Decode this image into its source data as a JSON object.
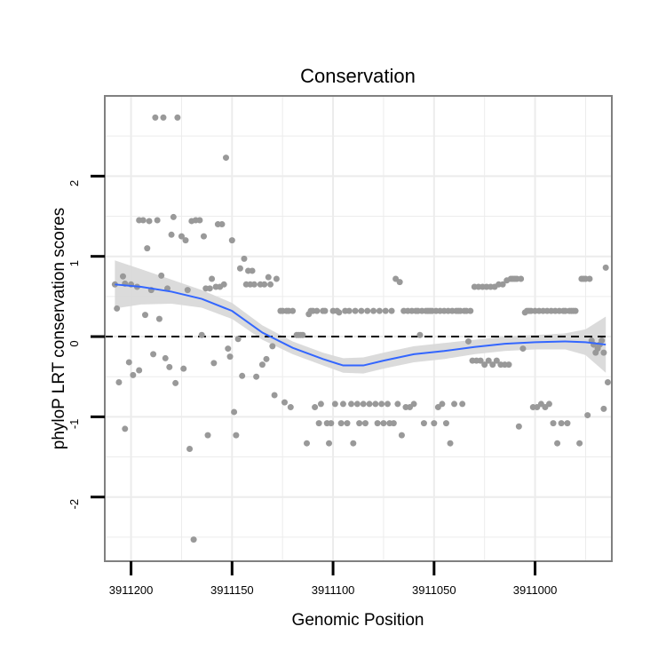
{
  "chart_data": {
    "type": "scatter",
    "title": "Conservation",
    "xlabel": "Genomic Position",
    "ylabel": "phyloP LRT conservation scores",
    "x_reversed": true,
    "xlim": [
      3910962,
      3911213
    ],
    "ylim": [
      -2.8,
      3.0
    ],
    "x_ticks": [
      3911200,
      3911150,
      3911100,
      3911050,
      3911000
    ],
    "x_tick_labels": [
      "3911200",
      "3911150",
      "3911100",
      "3911050",
      "3911000"
    ],
    "y_ticks": [
      2,
      1,
      0,
      -1,
      -2
    ],
    "y_tick_labels": [
      "2",
      "1",
      "0",
      "-1",
      "-2"
    ],
    "reference_line": {
      "y": 0,
      "style": "dashed",
      "color": "#000000"
    },
    "grid": true,
    "colors": {
      "points": "#999999",
      "smooth": "#3366ff",
      "band": "#d9d9d9",
      "panel_border": "#808080",
      "grid": "#ececec"
    },
    "smooth": {
      "x": [
        3911208,
        3911195,
        3911180,
        3911165,
        3911150,
        3911135,
        3911120,
        3911105,
        3911095,
        3911085,
        3911075,
        3911060,
        3911045,
        3911030,
        3911015,
        3911000,
        3910985,
        3910975,
        3910965
      ],
      "y": [
        0.65,
        0.62,
        0.56,
        0.47,
        0.32,
        0.05,
        -0.14,
        -0.28,
        -0.36,
        -0.36,
        -0.3,
        -0.22,
        -0.18,
        -0.13,
        -0.09,
        -0.07,
        -0.06,
        -0.07,
        -0.1
      ],
      "ci_halfwidth": [
        0.3,
        0.22,
        0.15,
        0.11,
        0.1,
        0.09,
        0.08,
        0.08,
        0.09,
        0.1,
        0.1,
        0.1,
        0.1,
        0.09,
        0.09,
        0.09,
        0.1,
        0.16,
        0.35
      ]
    },
    "points": [
      [
        3911208,
        0.65
      ],
      [
        3911207,
        0.35
      ],
      [
        3911206,
        -0.57
      ],
      [
        3911204,
        0.75
      ],
      [
        3911203,
        -1.15
      ],
      [
        3911203,
        0.66
      ],
      [
        3911201,
        -0.32
      ],
      [
        3911200,
        0.65
      ],
      [
        3911199,
        -0.48
      ],
      [
        3911197,
        0.62
      ],
      [
        3911196,
        1.45
      ],
      [
        3911196,
        -0.42
      ],
      [
        3911194,
        1.45
      ],
      [
        3911193,
        0.27
      ],
      [
        3911192,
        1.1
      ],
      [
        3911191,
        1.44
      ],
      [
        3911190,
        0.58
      ],
      [
        3911189,
        -0.22
      ],
      [
        3911188,
        2.73
      ],
      [
        3911187,
        1.45
      ],
      [
        3911186,
        0.22
      ],
      [
        3911185,
        0.76
      ],
      [
        3911184,
        2.73
      ],
      [
        3911183,
        -0.27
      ],
      [
        3911182,
        0.6
      ],
      [
        3911181,
        -0.38
      ],
      [
        3911180,
        1.27
      ],
      [
        3911179,
        1.49
      ],
      [
        3911178,
        -0.58
      ],
      [
        3911177,
        2.73
      ],
      [
        3911175,
        1.25
      ],
      [
        3911174,
        -0.4
      ],
      [
        3911173,
        1.2
      ],
      [
        3911172,
        0.58
      ],
      [
        3911171,
        -1.4
      ],
      [
        3911170,
        1.44
      ],
      [
        3911169,
        -2.53
      ],
      [
        3911168,
        1.45
      ],
      [
        3911166,
        1.45
      ],
      [
        3911165,
        0.02
      ],
      [
        3911164,
        1.25
      ],
      [
        3911163,
        0.6
      ],
      [
        3911162,
        -1.23
      ],
      [
        3911161,
        0.6
      ],
      [
        3911160,
        0.72
      ],
      [
        3911159,
        -0.33
      ],
      [
        3911158,
        0.62
      ],
      [
        3911157,
        1.4
      ],
      [
        3911156,
        0.62
      ],
      [
        3911155,
        1.4
      ],
      [
        3911154,
        0.65
      ],
      [
        3911153,
        2.23
      ],
      [
        3911152,
        -0.15
      ],
      [
        3911151,
        -0.25
      ],
      [
        3911150,
        1.2
      ],
      [
        3911149,
        -0.94
      ],
      [
        3911148,
        -1.23
      ],
      [
        3911147,
        -0.03
      ],
      [
        3911146,
        0.85
      ],
      [
        3911145,
        -0.49
      ],
      [
        3911144,
        0.97
      ],
      [
        3911143,
        0.65
      ],
      [
        3911142,
        0.82
      ],
      [
        3911141,
        0.65
      ],
      [
        3911140,
        0.82
      ],
      [
        3911139,
        0.65
      ],
      [
        3911138,
        -0.5
      ],
      [
        3911136,
        0.65
      ],
      [
        3911135,
        -0.35
      ],
      [
        3911134,
        0.65
      ],
      [
        3911133,
        -0.28
      ],
      [
        3911132,
        0.74
      ],
      [
        3911131,
        0.65
      ],
      [
        3911130,
        -0.12
      ],
      [
        3911129,
        -0.73
      ],
      [
        3911128,
        0.72
      ],
      [
        3911126,
        0.32
      ],
      [
        3911125,
        0.32
      ],
      [
        3911124,
        -0.82
      ],
      [
        3911123,
        0.32
      ],
      [
        3911122,
        0.32
      ],
      [
        3911121,
        -0.88
      ],
      [
        3911120,
        0.32
      ],
      [
        3911118,
        0.02
      ],
      [
        3911117,
        0.02
      ],
      [
        3911116,
        0.02
      ],
      [
        3911115,
        0.02
      ],
      [
        3911113,
        -1.33
      ],
      [
        3911112,
        0.28
      ],
      [
        3911111,
        0.32
      ],
      [
        3911110,
        0.32
      ],
      [
        3911109,
        -0.88
      ],
      [
        3911108,
        0.32
      ],
      [
        3911107,
        -1.08
      ],
      [
        3911106,
        -0.84
      ],
      [
        3911105,
        0.32
      ],
      [
        3911104,
        0.32
      ],
      [
        3911103,
        -1.08
      ],
      [
        3911102,
        -1.33
      ],
      [
        3911101,
        -1.08
      ],
      [
        3911100,
        0.32
      ],
      [
        3911099,
        -0.84
      ],
      [
        3911098,
        0.32
      ],
      [
        3911097,
        0.3
      ],
      [
        3911096,
        -1.08
      ],
      [
        3911095,
        -0.84
      ],
      [
        3911094,
        0.32
      ],
      [
        3911093,
        -1.08
      ],
      [
        3911092,
        0.32
      ],
      [
        3911091,
        -0.84
      ],
      [
        3911090,
        -1.33
      ],
      [
        3911089,
        0.32
      ],
      [
        3911088,
        -0.84
      ],
      [
        3911087,
        -1.08
      ],
      [
        3911086,
        0.32
      ],
      [
        3911085,
        -0.84
      ],
      [
        3911084,
        -1.08
      ],
      [
        3911083,
        0.32
      ],
      [
        3911082,
        -0.84
      ],
      [
        3911080,
        0.32
      ],
      [
        3911079,
        -0.84
      ],
      [
        3911078,
        -1.08
      ],
      [
        3911077,
        0.32
      ],
      [
        3911076,
        -0.84
      ],
      [
        3911075,
        -1.08
      ],
      [
        3911074,
        0.32
      ],
      [
        3911073,
        -0.84
      ],
      [
        3911072,
        -1.08
      ],
      [
        3911071,
        0.32
      ],
      [
        3911070,
        -1.08
      ],
      [
        3911069,
        0.72
      ],
      [
        3911068,
        -0.84
      ],
      [
        3911067,
        0.68
      ],
      [
        3911066,
        -1.23
      ],
      [
        3911065,
        0.32
      ],
      [
        3911064,
        -0.88
      ],
      [
        3911063,
        0.32
      ],
      [
        3911062,
        -0.88
      ],
      [
        3911061,
        0.32
      ],
      [
        3911060,
        -0.84
      ],
      [
        3911059,
        0.32
      ],
      [
        3911058,
        0.32
      ],
      [
        3911057,
        0.02
      ],
      [
        3911056,
        0.32
      ],
      [
        3911055,
        -1.08
      ],
      [
        3911054,
        0.32
      ],
      [
        3911053,
        0.32
      ],
      [
        3911052,
        0.32
      ],
      [
        3911051,
        0.32
      ],
      [
        3911050,
        -1.08
      ],
      [
        3911049,
        0.32
      ],
      [
        3911048,
        -0.88
      ],
      [
        3911047,
        0.32
      ],
      [
        3911046,
        -0.84
      ],
      [
        3911045,
        0.32
      ],
      [
        3911044,
        -1.08
      ],
      [
        3911043,
        0.32
      ],
      [
        3911042,
        -1.33
      ],
      [
        3911041,
        0.32
      ],
      [
        3911040,
        -0.84
      ],
      [
        3911039,
        0.32
      ],
      [
        3911038,
        0.32
      ],
      [
        3911037,
        0.32
      ],
      [
        3911036,
        -0.84
      ],
      [
        3911035,
        0.32
      ],
      [
        3911034,
        0.32
      ],
      [
        3911033,
        -0.06
      ],
      [
        3911032,
        0.32
      ],
      [
        3911031,
        -0.3
      ],
      [
        3911030,
        0.62
      ],
      [
        3911029,
        -0.3
      ],
      [
        3911028,
        0.62
      ],
      [
        3911027,
        -0.3
      ],
      [
        3911026,
        0.62
      ],
      [
        3911025,
        -0.35
      ],
      [
        3911024,
        0.62
      ],
      [
        3911023,
        -0.3
      ],
      [
        3911022,
        0.62
      ],
      [
        3911021,
        -0.35
      ],
      [
        3911020,
        0.62
      ],
      [
        3911019,
        -0.3
      ],
      [
        3911018,
        0.65
      ],
      [
        3911017,
        -0.35
      ],
      [
        3911016,
        0.65
      ],
      [
        3911015,
        -0.35
      ],
      [
        3911014,
        0.7
      ],
      [
        3911013,
        -0.35
      ],
      [
        3911012,
        0.72
      ],
      [
        3911011,
        0.72
      ],
      [
        3911010,
        0.72
      ],
      [
        3911009,
        0.72
      ],
      [
        3911008,
        -1.12
      ],
      [
        3911007,
        0.72
      ],
      [
        3911006,
        -0.15
      ],
      [
        3911005,
        0.3
      ],
      [
        3911004,
        0.32
      ],
      [
        3911003,
        0.32
      ],
      [
        3911002,
        0.32
      ],
      [
        3911001,
        -0.88
      ],
      [
        3911000,
        0.32
      ],
      [
        3910999,
        -0.88
      ],
      [
        3910998,
        0.32
      ],
      [
        3910997,
        -0.84
      ],
      [
        3910996,
        0.32
      ],
      [
        3910995,
        -0.88
      ],
      [
        3910994,
        0.32
      ],
      [
        3910993,
        -0.84
      ],
      [
        3910992,
        0.32
      ],
      [
        3910991,
        -1.08
      ],
      [
        3910990,
        0.32
      ],
      [
        3910989,
        -1.33
      ],
      [
        3910988,
        0.32
      ],
      [
        3910987,
        -1.08
      ],
      [
        3910986,
        0.32
      ],
      [
        3910985,
        0.32
      ],
      [
        3910984,
        -1.08
      ],
      [
        3910983,
        0.32
      ],
      [
        3910982,
        0.32
      ],
      [
        3910981,
        0.32
      ],
      [
        3910980,
        0.32
      ],
      [
        3910978,
        -1.33
      ],
      [
        3910977,
        0.72
      ],
      [
        3910976,
        0.72
      ],
      [
        3910975,
        0.72
      ],
      [
        3910974,
        -0.98
      ],
      [
        3910973,
        0.72
      ],
      [
        3910972,
        -0.05
      ],
      [
        3910971,
        -0.1
      ],
      [
        3910970,
        -0.2
      ],
      [
        3910969,
        -0.15
      ],
      [
        3910968,
        -0.1
      ],
      [
        3910967,
        -0.05
      ],
      [
        3910966,
        -0.2
      ],
      [
        3910966,
        -0.9
      ],
      [
        3910965,
        0.86
      ],
      [
        3910964,
        -0.57
      ]
    ]
  }
}
